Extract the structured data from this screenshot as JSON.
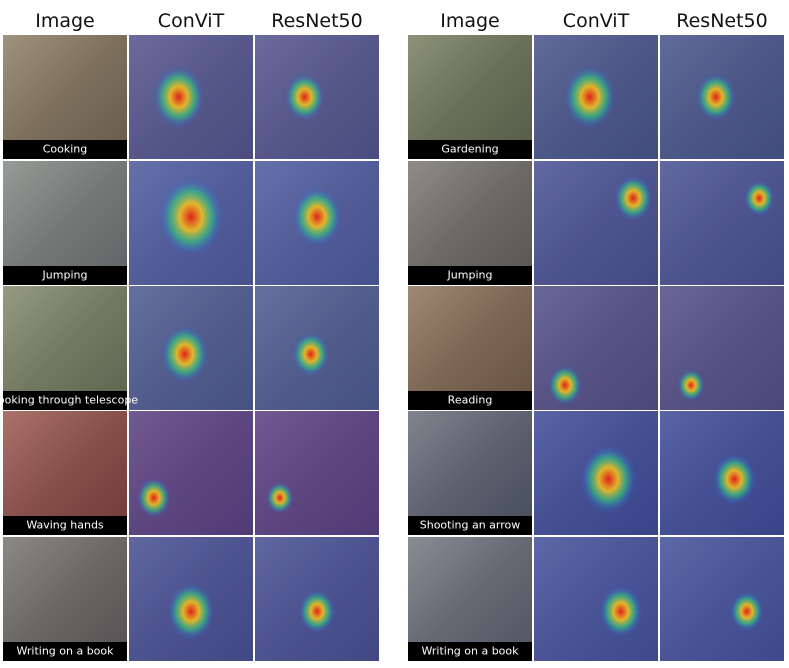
{
  "panels": [
    {
      "headers": [
        "Image",
        "ConViT",
        "ResNet50"
      ],
      "rows": [
        {
          "label": "Cooking"
        },
        {
          "label": "Jumping"
        },
        {
          "label": "Looking through telescope"
        },
        {
          "label": "Waving hands"
        },
        {
          "label": "Writing on a book"
        }
      ]
    },
    {
      "headers": [
        "Image",
        "ConViT",
        "ResNet50"
      ],
      "rows": [
        {
          "label": "Gardening"
        },
        {
          "label": "Jumping"
        },
        {
          "label": "Reading"
        },
        {
          "label": "Shooting an arrow"
        },
        {
          "label": "Writing on a book"
        }
      ]
    }
  ]
}
